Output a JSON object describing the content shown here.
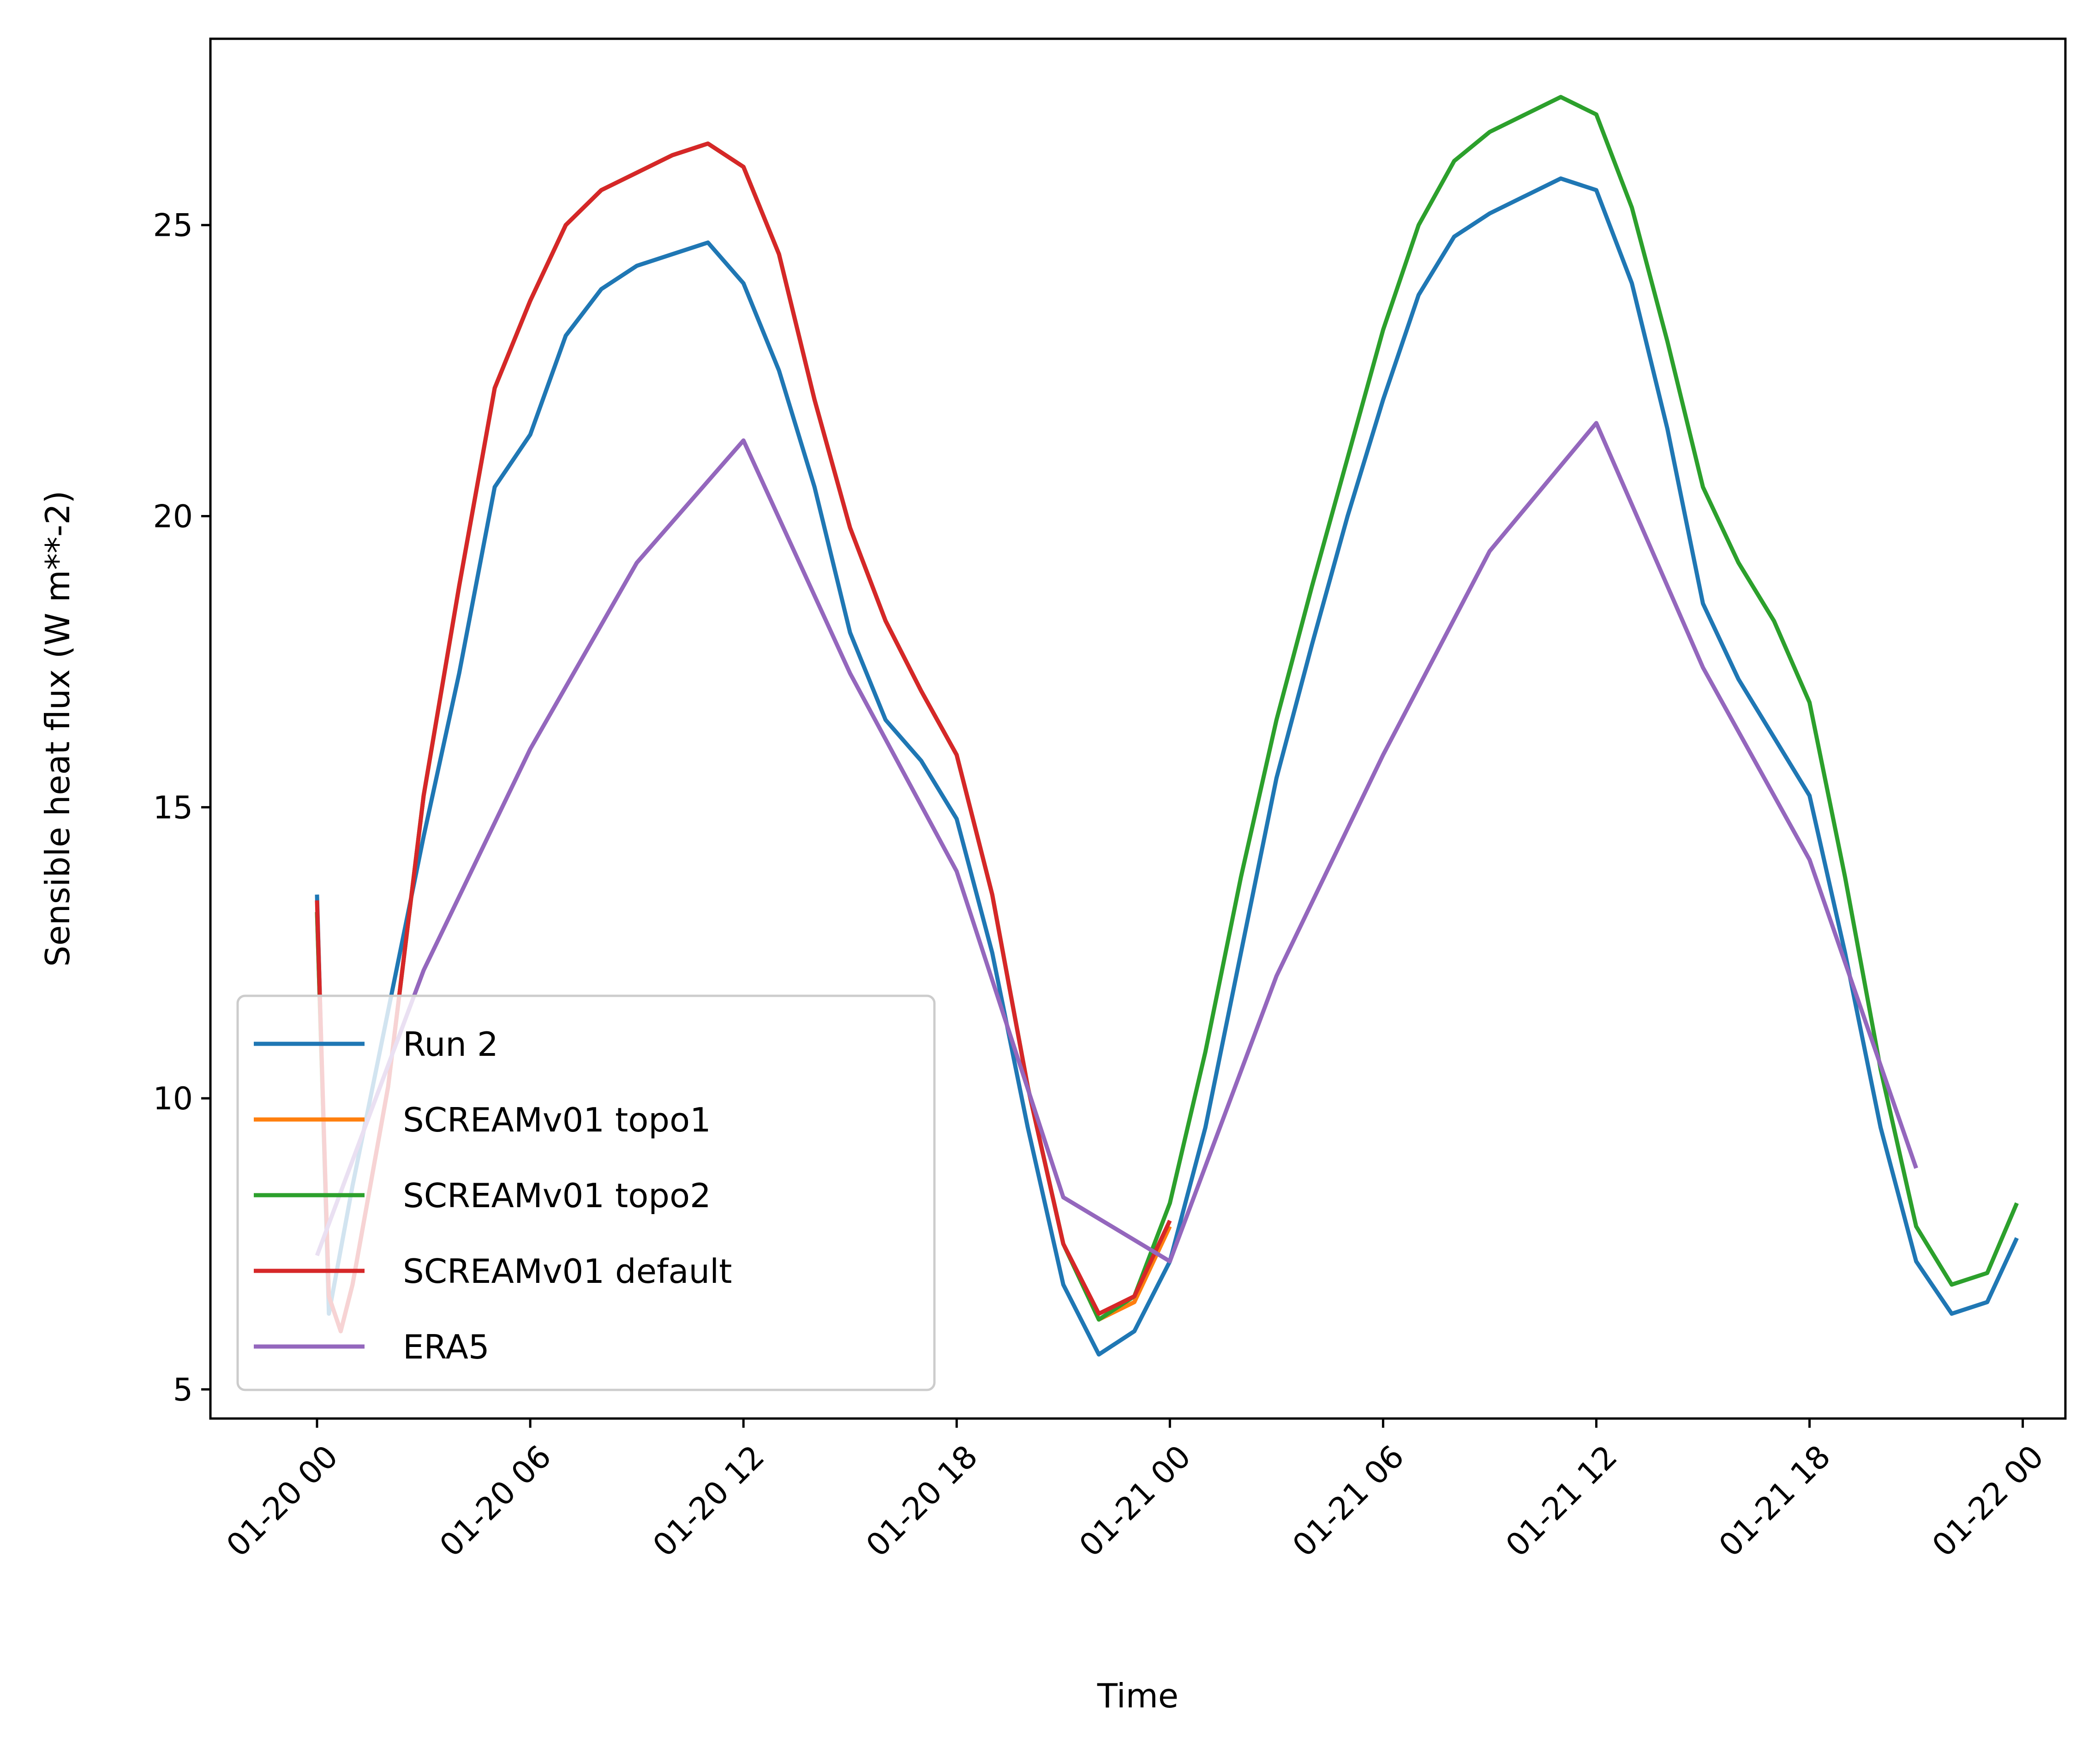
{
  "chart_data": {
    "type": "line",
    "xlabel": "Time",
    "ylabel": "Sensible heat flux (W m**-2)",
    "xlim": [
      "2024-01-19 21:00",
      "2024-01-22 01:12"
    ],
    "ylim": [
      4.5,
      28.2
    ],
    "legend_position": "lower-left",
    "grid": false,
    "x_ticks": [
      {
        "x": "2024-01-20 00:00",
        "label": "01-20 00"
      },
      {
        "x": "2024-01-20 06:00",
        "label": "01-20 06"
      },
      {
        "x": "2024-01-20 12:00",
        "label": "01-20 12"
      },
      {
        "x": "2024-01-20 18:00",
        "label": "01-20 18"
      },
      {
        "x": "2024-01-21 00:00",
        "label": "01-21 00"
      },
      {
        "x": "2024-01-21 06:00",
        "label": "01-21 06"
      },
      {
        "x": "2024-01-21 12:00",
        "label": "01-21 12"
      },
      {
        "x": "2024-01-21 18:00",
        "label": "01-21 18"
      },
      {
        "x": "2024-01-22 00:00",
        "label": "01-22 00"
      }
    ],
    "y_ticks": [
      {
        "y": 5,
        "label": "5"
      },
      {
        "y": 10,
        "label": "10"
      },
      {
        "y": 15,
        "label": "15"
      },
      {
        "y": 20,
        "label": "20"
      },
      {
        "y": 25,
        "label": "25"
      }
    ],
    "series": [
      {
        "name": "Run 2",
        "color": "#1f77b4",
        "points": [
          [
            "2024-01-20 00:00",
            13.5
          ],
          [
            "2024-01-20 00:20",
            6.3
          ],
          [
            "2024-01-20 01:00",
            8.5
          ],
          [
            "2024-01-20 02:00",
            11.5
          ],
          [
            "2024-01-20 03:00",
            14.5
          ],
          [
            "2024-01-20 04:00",
            17.3
          ],
          [
            "2024-01-20 05:00",
            20.5
          ],
          [
            "2024-01-20 06:00",
            21.4
          ],
          [
            "2024-01-20 07:00",
            23.1
          ],
          [
            "2024-01-20 08:00",
            23.9
          ],
          [
            "2024-01-20 09:00",
            24.3
          ],
          [
            "2024-01-20 10:00",
            24.5
          ],
          [
            "2024-01-20 11:00",
            24.7
          ],
          [
            "2024-01-20 12:00",
            24.0
          ],
          [
            "2024-01-20 13:00",
            22.5
          ],
          [
            "2024-01-20 14:00",
            20.5
          ],
          [
            "2024-01-20 15:00",
            18.0
          ],
          [
            "2024-01-20 16:00",
            16.5
          ],
          [
            "2024-01-20 17:00",
            15.8
          ],
          [
            "2024-01-20 18:00",
            14.8
          ],
          [
            "2024-01-20 19:00",
            12.5
          ],
          [
            "2024-01-20 20:00",
            9.5
          ],
          [
            "2024-01-20 21:00",
            6.8
          ],
          [
            "2024-01-20 22:00",
            5.6
          ],
          [
            "2024-01-20 23:00",
            6.0
          ],
          [
            "2024-01-21 00:00",
            7.2
          ],
          [
            "2024-01-21 01:00",
            9.5
          ],
          [
            "2024-01-21 02:00",
            12.5
          ],
          [
            "2024-01-21 03:00",
            15.5
          ],
          [
            "2024-01-21 04:00",
            17.8
          ],
          [
            "2024-01-21 05:00",
            20.0
          ],
          [
            "2024-01-21 06:00",
            22.0
          ],
          [
            "2024-01-21 07:00",
            23.8
          ],
          [
            "2024-01-21 08:00",
            24.8
          ],
          [
            "2024-01-21 09:00",
            25.2
          ],
          [
            "2024-01-21 10:00",
            25.5
          ],
          [
            "2024-01-21 11:00",
            25.8
          ],
          [
            "2024-01-21 12:00",
            25.6
          ],
          [
            "2024-01-21 13:00",
            24.0
          ],
          [
            "2024-01-21 14:00",
            21.5
          ],
          [
            "2024-01-21 15:00",
            18.5
          ],
          [
            "2024-01-21 16:00",
            17.2
          ],
          [
            "2024-01-21 17:00",
            16.2
          ],
          [
            "2024-01-21 18:00",
            15.2
          ],
          [
            "2024-01-21 19:00",
            12.5
          ],
          [
            "2024-01-21 20:00",
            9.5
          ],
          [
            "2024-01-21 21:00",
            7.2
          ],
          [
            "2024-01-21 22:00",
            6.3
          ],
          [
            "2024-01-21 23:00",
            6.5
          ],
          [
            "2024-01-21 23:50",
            7.6
          ]
        ]
      },
      {
        "name": "SCREAMv01 topo1",
        "color": "#ff7f0e",
        "points": [
          [
            "2024-01-20 00:00",
            13.2
          ],
          [
            "2024-01-20 00:20",
            6.6
          ],
          [
            "2024-01-20 00:40",
            6.0
          ],
          [
            "2024-01-20 01:00",
            6.8
          ],
          [
            "2024-01-20 02:00",
            10.2
          ],
          [
            "2024-01-20 03:00",
            15.2
          ],
          [
            "2024-01-20 04:00",
            18.8
          ],
          [
            "2024-01-20 05:00",
            22.2
          ],
          [
            "2024-01-20 06:00",
            23.7
          ],
          [
            "2024-01-20 07:00",
            25.0
          ],
          [
            "2024-01-20 08:00",
            25.6
          ],
          [
            "2024-01-20 09:00",
            25.9
          ],
          [
            "2024-01-20 10:00",
            26.2
          ],
          [
            "2024-01-20 11:00",
            26.4
          ],
          [
            "2024-01-20 12:00",
            26.0
          ],
          [
            "2024-01-20 13:00",
            24.5
          ],
          [
            "2024-01-20 14:00",
            22.0
          ],
          [
            "2024-01-20 15:00",
            19.8
          ],
          [
            "2024-01-20 16:00",
            18.2
          ],
          [
            "2024-01-20 17:00",
            17.0
          ],
          [
            "2024-01-20 18:00",
            15.9
          ],
          [
            "2024-01-20 19:00",
            13.5
          ],
          [
            "2024-01-20 20:00",
            10.2
          ],
          [
            "2024-01-20 21:00",
            7.5
          ],
          [
            "2024-01-20 22:00",
            6.2
          ],
          [
            "2024-01-20 23:00",
            6.5
          ],
          [
            "2024-01-21 00:00",
            7.8
          ]
        ]
      },
      {
        "name": "SCREAMv01 topo2",
        "color": "#2ca02c",
        "points": [
          [
            "2024-01-20 00:00",
            13.2
          ],
          [
            "2024-01-20 00:20",
            6.6
          ],
          [
            "2024-01-20 00:40",
            6.0
          ],
          [
            "2024-01-20 01:00",
            6.8
          ],
          [
            "2024-01-20 02:00",
            10.2
          ],
          [
            "2024-01-20 03:00",
            15.2
          ],
          [
            "2024-01-20 04:00",
            18.8
          ],
          [
            "2024-01-20 05:00",
            22.2
          ],
          [
            "2024-01-20 06:00",
            23.7
          ],
          [
            "2024-01-20 07:00",
            25.0
          ],
          [
            "2024-01-20 08:00",
            25.6
          ],
          [
            "2024-01-20 09:00",
            25.9
          ],
          [
            "2024-01-20 10:00",
            26.2
          ],
          [
            "2024-01-20 11:00",
            26.4
          ],
          [
            "2024-01-20 12:00",
            26.0
          ],
          [
            "2024-01-20 13:00",
            24.5
          ],
          [
            "2024-01-20 14:00",
            22.0
          ],
          [
            "2024-01-20 15:00",
            19.8
          ],
          [
            "2024-01-20 16:00",
            18.2
          ],
          [
            "2024-01-20 17:00",
            17.0
          ],
          [
            "2024-01-20 18:00",
            15.9
          ],
          [
            "2024-01-20 19:00",
            13.5
          ],
          [
            "2024-01-20 20:00",
            10.2
          ],
          [
            "2024-01-20 21:00",
            7.5
          ],
          [
            "2024-01-20 22:00",
            6.2
          ],
          [
            "2024-01-20 23:00",
            6.6
          ],
          [
            "2024-01-21 00:00",
            8.2
          ],
          [
            "2024-01-21 01:00",
            10.8
          ],
          [
            "2024-01-21 02:00",
            13.8
          ],
          [
            "2024-01-21 03:00",
            16.5
          ],
          [
            "2024-01-21 04:00",
            18.8
          ],
          [
            "2024-01-21 05:00",
            21.0
          ],
          [
            "2024-01-21 06:00",
            23.2
          ],
          [
            "2024-01-21 07:00",
            25.0
          ],
          [
            "2024-01-21 08:00",
            26.1
          ],
          [
            "2024-01-21 09:00",
            26.6
          ],
          [
            "2024-01-21 10:00",
            26.9
          ],
          [
            "2024-01-21 11:00",
            27.2
          ],
          [
            "2024-01-21 12:00",
            26.9
          ],
          [
            "2024-01-21 13:00",
            25.3
          ],
          [
            "2024-01-21 14:00",
            23.0
          ],
          [
            "2024-01-21 15:00",
            20.5
          ],
          [
            "2024-01-21 16:00",
            19.2
          ],
          [
            "2024-01-21 17:00",
            18.2
          ],
          [
            "2024-01-21 18:00",
            16.8
          ],
          [
            "2024-01-21 19:00",
            13.8
          ],
          [
            "2024-01-21 20:00",
            10.5
          ],
          [
            "2024-01-21 21:00",
            7.8
          ],
          [
            "2024-01-21 22:00",
            6.8
          ],
          [
            "2024-01-21 23:00",
            7.0
          ],
          [
            "2024-01-21 23:50",
            8.2
          ]
        ]
      },
      {
        "name": "SCREAMv01 default",
        "color": "#d62728",
        "points": [
          [
            "2024-01-20 00:00",
            13.4
          ],
          [
            "2024-01-20 00:20",
            6.6
          ],
          [
            "2024-01-20 00:40",
            6.0
          ],
          [
            "2024-01-20 01:00",
            6.8
          ],
          [
            "2024-01-20 02:00",
            10.2
          ],
          [
            "2024-01-20 03:00",
            15.2
          ],
          [
            "2024-01-20 04:00",
            18.8
          ],
          [
            "2024-01-20 05:00",
            22.2
          ],
          [
            "2024-01-20 06:00",
            23.7
          ],
          [
            "2024-01-20 07:00",
            25.0
          ],
          [
            "2024-01-20 08:00",
            25.6
          ],
          [
            "2024-01-20 09:00",
            25.9
          ],
          [
            "2024-01-20 10:00",
            26.2
          ],
          [
            "2024-01-20 11:00",
            26.4
          ],
          [
            "2024-01-20 12:00",
            26.0
          ],
          [
            "2024-01-20 13:00",
            24.5
          ],
          [
            "2024-01-20 14:00",
            22.0
          ],
          [
            "2024-01-20 15:00",
            19.8
          ],
          [
            "2024-01-20 16:00",
            18.2
          ],
          [
            "2024-01-20 17:00",
            17.0
          ],
          [
            "2024-01-20 18:00",
            15.9
          ],
          [
            "2024-01-20 19:00",
            13.5
          ],
          [
            "2024-01-20 20:00",
            10.2
          ],
          [
            "2024-01-20 21:00",
            7.5
          ],
          [
            "2024-01-20 22:00",
            6.3
          ],
          [
            "2024-01-20 23:00",
            6.6
          ],
          [
            "2024-01-21 00:00",
            7.9
          ]
        ]
      },
      {
        "name": "ERA5",
        "color": "#9467bd",
        "points": [
          [
            "2024-01-20 00:00",
            7.3
          ],
          [
            "2024-01-20 03:00",
            12.2
          ],
          [
            "2024-01-20 06:00",
            16.0
          ],
          [
            "2024-01-20 09:00",
            19.2
          ],
          [
            "2024-01-20 12:00",
            21.3
          ],
          [
            "2024-01-20 15:00",
            17.3
          ],
          [
            "2024-01-20 18:00",
            13.9
          ],
          [
            "2024-01-20 21:00",
            8.3
          ],
          [
            "2024-01-21 00:00",
            7.2
          ],
          [
            "2024-01-21 03:00",
            12.1
          ],
          [
            "2024-01-21 06:00",
            15.9
          ],
          [
            "2024-01-21 09:00",
            19.4
          ],
          [
            "2024-01-21 12:00",
            21.6
          ],
          [
            "2024-01-21 15:00",
            17.4
          ],
          [
            "2024-01-21 18:00",
            14.1
          ],
          [
            "2024-01-21 21:00",
            8.8
          ]
        ]
      }
    ]
  }
}
